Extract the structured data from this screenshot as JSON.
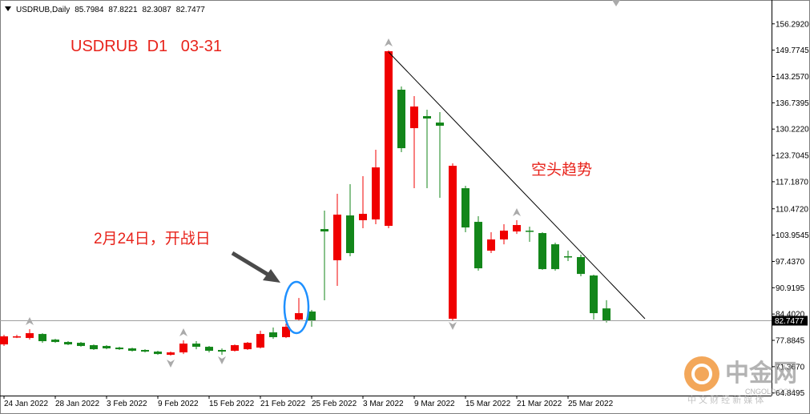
{
  "chart_data": {
    "type": "candlestick",
    "symbol": "USDRUB,Daily",
    "title": "USDRUB  D1   03-31",
    "annotations": [
      "空头趋势",
      "2月24日，开战日"
    ],
    "watermark": {
      "name": "中金网",
      "site": "CNGOLD.COM",
      "slogan": "中 文 财 经 新 媒 体"
    },
    "up_color": "#f00000",
    "down_color": "#13861a",
    "categories": [
      "24 Jan 2022",
      null,
      null,
      null,
      "28 Jan 2022",
      null,
      null,
      null,
      "3 Feb 2022",
      null,
      null,
      null,
      "9 Feb 2022",
      null,
      null,
      null,
      "15 Feb 2022",
      null,
      null,
      null,
      "21 Feb 2022",
      null,
      null,
      null,
      "25 Feb 2022",
      null,
      null,
      null,
      "3 Mar 2022",
      null,
      null,
      null,
      "9 Mar 2022",
      null,
      null,
      null,
      "15 Mar 2022",
      null,
      null,
      null,
      "21 Mar 2022",
      null,
      null,
      null,
      "25 Mar 2022",
      null,
      null,
      null
    ],
    "open": [
      76.88,
      78.67,
      78.47,
      79.46,
      78.07,
      77.48,
      77.28,
      76.69,
      76.49,
      76.09,
      75.89,
      75.5,
      75.1,
      74.3,
      74.9,
      77.08,
      76.29,
      75.5,
      75.3,
      75.69,
      76.09,
      79.86,
      78.67,
      83.03,
      85.02,
      105.45,
      97.72,
      108.83,
      107.64,
      107.84,
      106.25,
      139.98,
      130.45,
      133.43,
      131.84,
      83.23,
      115.57,
      107.24,
      100.1,
      102.88,
      104.86,
      105.06,
      104.46,
      101.68,
      98.71,
      98.51,
      93.95,
      85.7984
    ],
    "high": [
      79.26,
      79.26,
      80.65,
      79.66,
      78.27,
      77.68,
      77.48,
      76.88,
      76.69,
      76.29,
      76.09,
      75.69,
      75.3,
      75.1,
      77.88,
      77.68,
      76.49,
      75.89,
      76.88,
      77.48,
      80.26,
      81.05,
      82.04,
      88.39,
      85.42,
      110.02,
      114.18,
      116.57,
      118.55,
      125.1,
      149.7,
      140.77,
      138.39,
      135.02,
      134.42,
      121.72,
      116.17,
      108.63,
      104.66,
      106.65,
      107.64,
      106.05,
      104.66,
      102.08,
      100.1,
      99.11,
      94.15,
      87.8221
    ],
    "low": [
      76.49,
      78.47,
      78.07,
      77.28,
      77.28,
      76.69,
      76.29,
      75.5,
      75.69,
      75.5,
      75.1,
      74.9,
      74.3,
      74.11,
      74.5,
      75.69,
      74.9,
      74.3,
      75.1,
      75.5,
      75.89,
      78.27,
      78.47,
      82.64,
      81.25,
      87.8,
      91.37,
      98.71,
      105.65,
      106.65,
      105.65,
      124.5,
      115.57,
      115.57,
      113.19,
      82.84,
      104.66,
      95.14,
      99.5,
      101.68,
      104.26,
      102.28,
      95.34,
      95.14,
      97.52,
      93.75,
      83.03,
      82.3087
    ],
    "close": [
      78.87,
      78.87,
      79.66,
      77.68,
      77.48,
      76.88,
      76.49,
      75.69,
      75.89,
      75.69,
      75.3,
      75.1,
      74.5,
      74.9,
      77.08,
      76.29,
      75.3,
      75.1,
      76.69,
      77.28,
      79.46,
      78.67,
      81.25,
      84.62,
      82.84,
      104.86,
      109.03,
      99.5,
      109.22,
      120.73,
      149.5,
      125.49,
      135.81,
      132.84,
      131.05,
      121.13,
      105.85,
      95.73,
      102.88,
      105.06,
      106.45,
      104.86,
      95.53,
      95.53,
      98.51,
      94.34,
      84.62,
      82.7477
    ],
    "ylim": [
      64.2,
      162.2
    ],
    "yticks": [
      {
        "value": 156.292,
        "label": "156.2920"
      },
      {
        "value": 149.7745,
        "label": "149.7745"
      },
      {
        "value": 143.257,
        "label": "143.2570"
      },
      {
        "value": 136.7395,
        "label": "136.7395"
      },
      {
        "value": 130.222,
        "label": "130.2220"
      },
      {
        "value": 123.7045,
        "label": "123.7045"
      },
      {
        "value": 117.187,
        "label": "117.1870"
      },
      {
        "value": 110.472,
        "label": "110.4720"
      },
      {
        "value": 103.9545,
        "label": "103.9545"
      },
      {
        "value": 97.437,
        "label": "97.4370"
      },
      {
        "value": 90.9195,
        "label": "90.9195"
      },
      {
        "value": 84.402,
        "label": "84.4020"
      },
      {
        "value": 77.8845,
        "label": "77.8845"
      },
      {
        "value": 71.367,
        "label": "71.3670"
      },
      {
        "value": 64.8495,
        "label": "64.8495"
      }
    ]
  }
}
